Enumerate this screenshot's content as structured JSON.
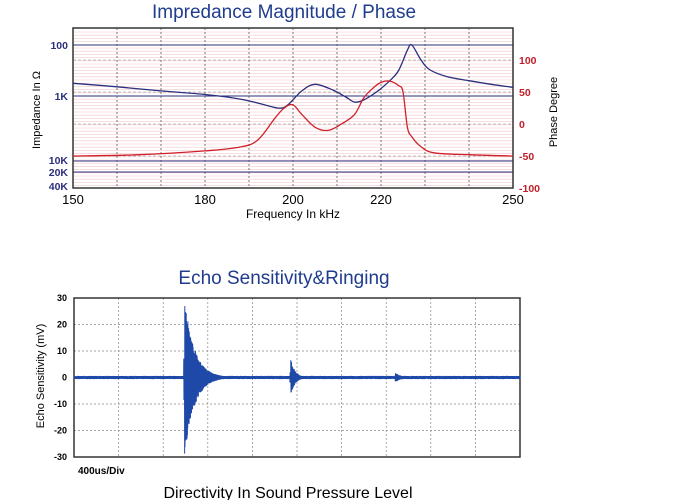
{
  "chart_data": [
    {
      "type": "line",
      "title": "Impredance Magnitude / Phase",
      "xlabel": "Frequency In kHz",
      "ylabel_left": "Impedance In Ω",
      "ylabel_right": "Phase Degree",
      "x_ticks": [
        "150",
        "180",
        "200",
        "220",
        "250"
      ],
      "x_tick_values": [
        150,
        180,
        200,
        220,
        250
      ],
      "xlim": [
        150,
        250
      ],
      "y_left_ticks": [
        "100",
        "1K",
        "10K",
        "20K",
        "40K"
      ],
      "y_right_ticks": [
        "100",
        "50",
        "0",
        "-50",
        "-100"
      ],
      "y_right_tick_values": [
        100,
        50,
        0,
        -50,
        -100
      ],
      "y_right_lim": [
        -100,
        150
      ],
      "colors": {
        "impedance": "#2b2f7e",
        "phase": "#d0202a",
        "frame": "#333333"
      },
      "series": [
        {
          "axis": "left",
          "values_log10_ohm": [
            [
              150,
              2.75
            ],
            [
              160,
              2.82
            ],
            [
              170,
              2.9
            ],
            [
              180,
              2.97
            ],
            [
              188,
              3.06
            ],
            [
              193,
              3.16
            ],
            [
              197,
              3.24
            ],
            [
              199,
              3.16
            ],
            [
              202,
              2.9
            ],
            [
              205,
              2.77
            ],
            [
              209,
              2.88
            ],
            [
              212,
              3.02
            ],
            [
              214,
              3.12
            ],
            [
              216,
              3.08
            ],
            [
              219,
              2.92
            ],
            [
              222,
              2.7
            ],
            [
              224,
              2.5
            ],
            [
              226,
              2.1
            ],
            [
              227,
              2.0
            ],
            [
              229,
              2.28
            ],
            [
              231,
              2.48
            ],
            [
              235,
              2.62
            ],
            [
              240,
              2.7
            ],
            [
              245,
              2.77
            ],
            [
              250,
              2.83
            ]
          ]
        },
        {
          "axis": "right",
          "values": [
            [
              150,
              -50
            ],
            [
              165,
              -48
            ],
            [
              180,
              -42
            ],
            [
              188,
              -36
            ],
            [
              192,
              -25
            ],
            [
              196,
              10
            ],
            [
              198,
              25
            ],
            [
              200,
              30
            ],
            [
              202,
              15
            ],
            [
              205,
              -5
            ],
            [
              208,
              -10
            ],
            [
              211,
              0
            ],
            [
              214,
              15
            ],
            [
              216,
              40
            ],
            [
              218,
              55
            ],
            [
              220,
              65
            ],
            [
              222,
              67
            ],
            [
              224,
              60
            ],
            [
              225,
              50
            ],
            [
              226,
              -5
            ],
            [
              227,
              -20
            ],
            [
              229,
              -35
            ],
            [
              232,
              -45
            ],
            [
              240,
              -48
            ],
            [
              250,
              -50
            ]
          ]
        }
      ]
    },
    {
      "type": "line",
      "title": "Echo Sensitivity&Ringing",
      "ylabel": "Echo Sensitivity (mV)",
      "annotation": "400us/Div",
      "y_ticks": [
        "30",
        "20",
        "10",
        "0",
        "-10",
        "-20",
        "-30"
      ],
      "y_tick_values": [
        30,
        20,
        10,
        0,
        -10,
        -20,
        -30
      ],
      "ylim": [
        -30,
        30
      ],
      "x_divisions": 10,
      "color": "#1f49a8",
      "bursts": [
        {
          "start_div": 2.48,
          "peak_amplitude": 30,
          "decay_divs": 0.22
        },
        {
          "start_div": 4.86,
          "peak_amplitude": 7,
          "decay_divs": 0.1
        },
        {
          "start_div": 7.2,
          "peak_amplitude": 1.8,
          "decay_divs": 0.14
        }
      ],
      "baseline_noise": 0.6
    }
  ],
  "next_section_title": "Directivity In Sound Pressure Level"
}
